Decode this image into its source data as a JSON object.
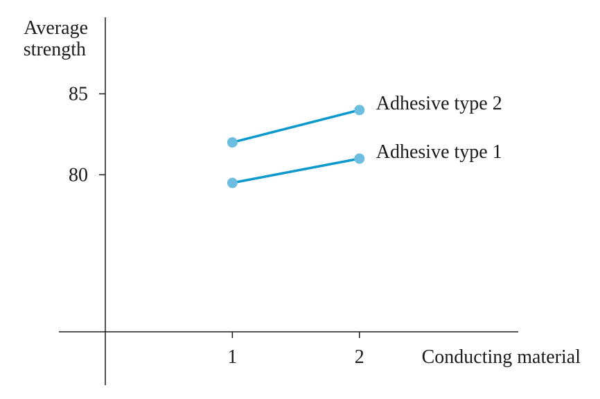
{
  "chart_data": {
    "type": "line",
    "xlabel": "Conducting material",
    "ylabel": [
      "Average",
      "strength"
    ],
    "x": [
      1,
      2
    ],
    "xlim": [
      0,
      3.25
    ],
    "ylim": [
      70.3,
      89.3
    ],
    "xticks": [
      1,
      2
    ],
    "yticks": [
      80,
      85
    ],
    "grid": false,
    "line_color": "#0B98CC",
    "marker_color": "#6CBDE0",
    "series": [
      {
        "name": "Adhesive type 2",
        "values": [
          82.0,
          84.0
        ]
      },
      {
        "name": "Adhesive type 1",
        "values": [
          79.5,
          81.0
        ]
      }
    ]
  }
}
